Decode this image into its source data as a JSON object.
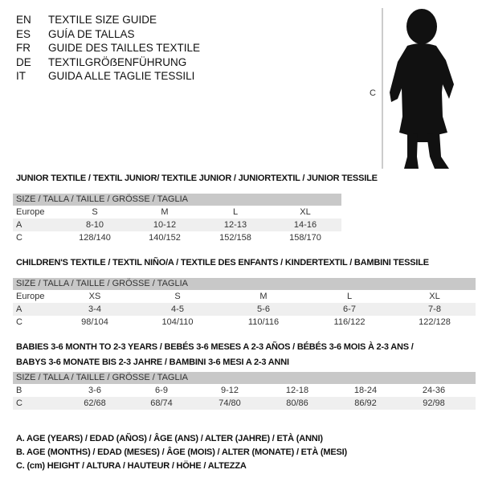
{
  "languages": [
    {
      "code": "EN",
      "title": "TEXTILE SIZE GUIDE"
    },
    {
      "code": "ES",
      "title": "GUÍA DE TALLAS"
    },
    {
      "code": "FR",
      "title": "GUIDE DES TAILLES TEXTILE"
    },
    {
      "code": "DE",
      "title": "TEXTILGRÖẞENFÜHRUNG"
    },
    {
      "code": "IT",
      "title": "GUIDA ALLE TAGLIE TESSILI"
    }
  ],
  "figure": {
    "label": "C"
  },
  "size_header": "SIZE / TALLA / TAILLE / GRÖSSE / TAGLIA",
  "junior": {
    "title": "JUNIOR TEXTILE / TEXTIL JUNIOR/ TEXTILE JUNIOR / JUNIORTEXTIL / JUNIOR TESSILE",
    "rows": [
      {
        "label": "Europe",
        "values": [
          "S",
          "M",
          "L",
          "XL"
        ]
      },
      {
        "label": "A",
        "values": [
          "8-10",
          "10-12",
          "12-13",
          "14-16"
        ]
      },
      {
        "label": "C",
        "values": [
          "128/140",
          "140/152",
          "152/158",
          "158/170"
        ]
      }
    ]
  },
  "children": {
    "title": "CHILDREN'S TEXTILE / TEXTIL NIÑO/A / TEXTILE DES ENFANTS / KINDERTEXTIL / BAMBINI TESSILE",
    "rows": [
      {
        "label": "Europe",
        "values": [
          "XS",
          "S",
          "M",
          "L",
          "XL"
        ]
      },
      {
        "label": "A",
        "values": [
          "3-4",
          "4-5",
          "5-6",
          "6-7",
          "7-8"
        ]
      },
      {
        "label": "C",
        "values": [
          "98/104",
          "104/110",
          "110/116",
          "116/122",
          "122/128"
        ]
      }
    ]
  },
  "babies": {
    "title_line1": "BABIES 3-6 MONTH TO 2-3 YEARS / BEBÉS 3-6 MESES A 2-3 AÑOS / BÉBÉS 3-6 MOIS À 2-3 ANS /",
    "title_line2": "BABYS 3-6 MONATE BIS 2-3 JAHRE / BAMBINI 3-6 MESI A 2-3 ANNI",
    "rows": [
      {
        "label": "B",
        "values": [
          "3-6",
          "6-9",
          "9-12",
          "12-18",
          "18-24",
          "24-36"
        ]
      },
      {
        "label": "C",
        "values": [
          "62/68",
          "68/74",
          "74/80",
          "80/86",
          "86/92",
          "92/98"
        ]
      }
    ]
  },
  "legend": [
    "A. AGE (YEARS) / EDAD (AÑOS) / ÂGE (ANS) / ALTER (JAHRE) / ETÀ (ANNI)",
    "B. AGE (MONTHS) / EDAD (MESES) / ÂGE (MOIS) / ALTER (MONATE) / ETÀ (MESI)",
    "C. (cm) HEIGHT / ALTURA / HAUTEUR / HÖHE / ALTEZZA"
  ]
}
